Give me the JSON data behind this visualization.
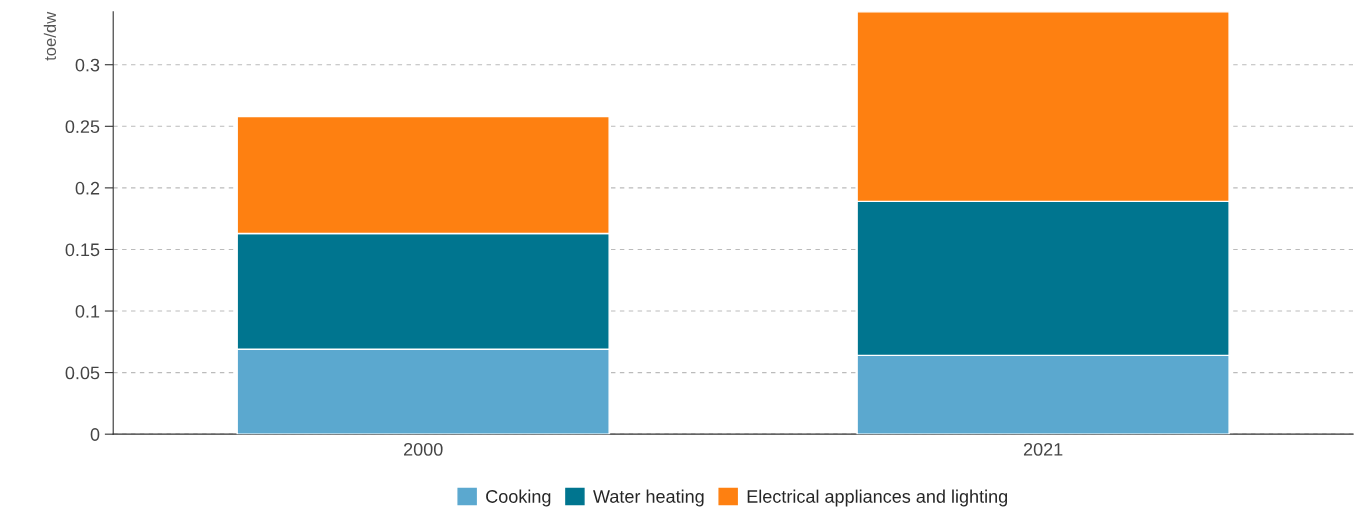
{
  "chart_data": {
    "type": "bar",
    "stacked": true,
    "ylabel": "toe/dw",
    "categories": [
      "2000",
      "2021"
    ],
    "series": [
      {
        "name": "Cooking",
        "color": "#5ba8cf",
        "values": [
          0.069,
          0.064
        ]
      },
      {
        "name": "Water heating",
        "color": "#00758f",
        "values": [
          0.094,
          0.125
        ]
      },
      {
        "name": "Electrical appliances and lighting",
        "color": "#fe8011",
        "values": [
          0.095,
          0.154
        ]
      }
    ],
    "ylim": [
      0,
      0.343
    ],
    "yticks": [
      0,
      0.05,
      0.1,
      0.15,
      0.2,
      0.25,
      0.3
    ],
    "grid": "y",
    "legend": "bottom"
  }
}
